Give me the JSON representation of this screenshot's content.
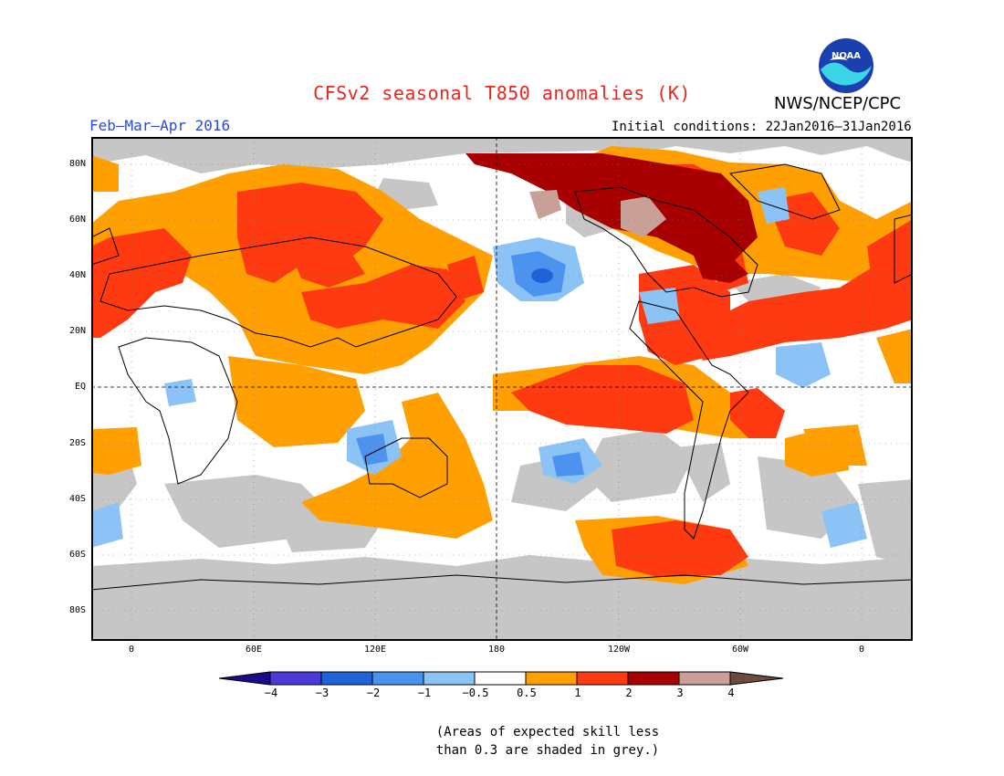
{
  "title": "CFSv2 seasonal T850 anomalies (K)",
  "season": "Feb–Mar–Apr 2016",
  "initial_conditions": "Initial conditions: 22Jan2016–31Jan2016",
  "agency": "NWS/NCEP/CPC",
  "logo_text": "NOAA",
  "lat_labels": [
    "80N",
    "60N",
    "40N",
    "20N",
    "EQ",
    "20S",
    "40S",
    "60S",
    "80S"
  ],
  "lon_labels": [
    "0",
    "60E",
    "120E",
    "180",
    "120W",
    "60W",
    "0"
  ],
  "colorbar": {
    "ticks": [
      "−4",
      "−3",
      "−2",
      "−1",
      "−0.5",
      "0.5",
      "1",
      "2",
      "3",
      "4"
    ],
    "colors": [
      "#1a0a8c",
      "#4a3ad6",
      "#1f63d9",
      "#4c93f0",
      "#8cc3f7",
      "#ffffff",
      "#ffa000",
      "#ff3a10",
      "#a80000",
      "#c8a098",
      "#6e4a3e"
    ]
  },
  "skill_shading_color": "#c6c6c6",
  "note_line1": "(Areas of expected skill less",
  "note_line2": "than 0.3 are shaded in grey.)"
}
